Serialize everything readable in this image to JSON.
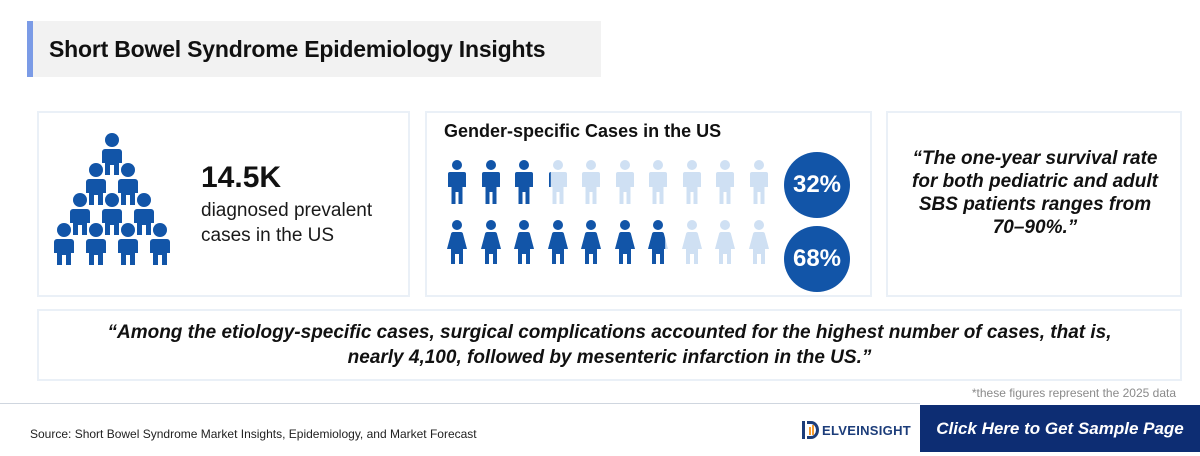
{
  "title": "Short Bowel Syndrome Epidemiology Insights",
  "prevalence": {
    "value": "14.5K",
    "description": "diagnosed prevalent cases in the US"
  },
  "gender": {
    "title": "Gender-specific Cases in the US",
    "male_percent_label": "32%",
    "female_percent_label": "68%",
    "male_share": 0.32,
    "female_share": 0.68,
    "icons_per_row": 10
  },
  "survival_quote": "“The one-year survival rate for both pediatric and adult SBS patients ranges from 70–90%.”",
  "etiology_quote": "“Among the etiology-specific cases, surgical complications accounted for the highest number of cases, that is, nearly 4,100, followed by mesenteric infarction in the US.”",
  "footnote": "*these figures represent the 2025 data",
  "source": "Source: Short Bowel Syndrome Market Insights, Epidemiology, and Market Forecast",
  "logo_text": "ELVEINSIGHT",
  "cta_label": "Click Here to Get Sample Page",
  "colors": {
    "primary": "#1255a8",
    "light": "#cfe0f3",
    "accent": "#7b9be6",
    "cta": "#0d2d73"
  }
}
